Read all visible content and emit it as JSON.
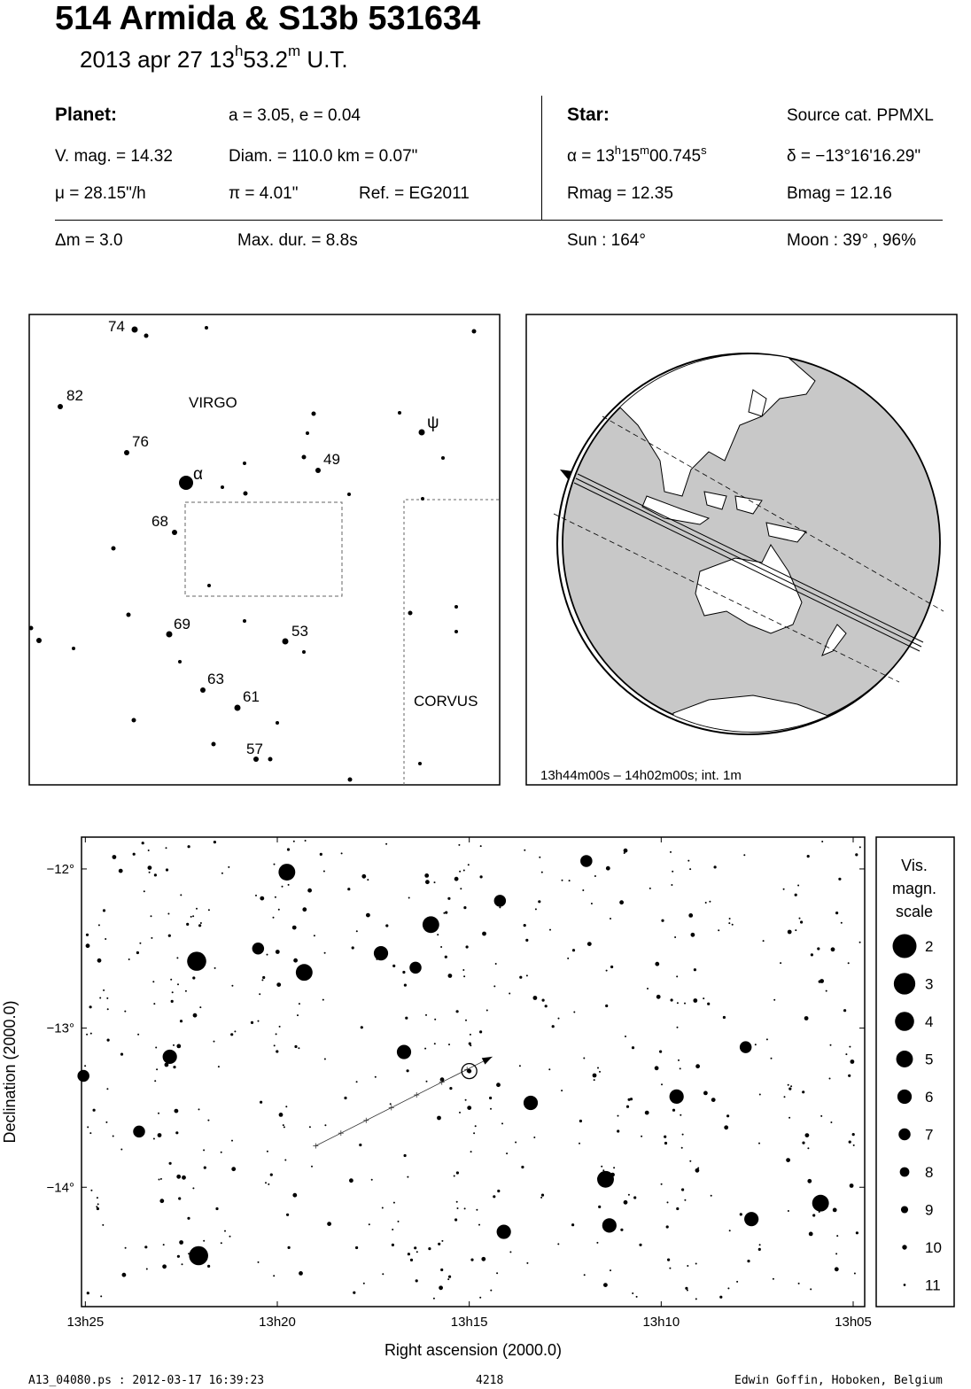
{
  "header": {
    "title": "514 Armida  &  S13b 531634",
    "date": "2013 apr 27  13",
    "time_h": "h",
    "time_min": "53.2",
    "time_m": "m",
    "time_ut": " U.T."
  },
  "planet": {
    "label": "Planet:",
    "orbit": "a = 3.05, e = 0.04",
    "vmag": "V. mag. = 14.32",
    "diam": "Diam. = 110.0 km = 0.07\"",
    "mu": "μ =  28.15\"/h",
    "pi": "π =  4.01\"",
    "ref": "Ref. = EG2011"
  },
  "star": {
    "label": "Star:",
    "source": "Source cat.  PPMXL",
    "alpha_prefix": "α = 13",
    "alpha_h": "h",
    "alpha_min": "15",
    "alpha_m": "m",
    "alpha_sec": "00.745",
    "alpha_s": "s",
    "delta": "δ = −13°16'16.29\"",
    "rmag": "Rmag = 12.35",
    "bmag": "Bmag = 12.16"
  },
  "event": {
    "dm": "Δm = 3.0",
    "maxdur": "Max. dur. = 8.8s",
    "sun": "Sun : 164°",
    "moon": "Moon :  39° , 96%"
  },
  "finder": {
    "constellations": [
      "VIRGO",
      "CORVUS"
    ],
    "labels": [
      {
        "text": "74"
      },
      {
        "text": "82"
      },
      {
        "text": "76"
      },
      {
        "text": "α"
      },
      {
        "text": "68"
      },
      {
        "text": "ψ"
      },
      {
        "text": "49"
      },
      {
        "text": "69"
      },
      {
        "text": "53"
      },
      {
        "text": "63"
      },
      {
        "text": "61"
      },
      {
        "text": "57"
      }
    ]
  },
  "globe": {
    "caption": "13h44m00s – 14h02m00s; int.  1m"
  },
  "chart_data": {
    "type": "scatter",
    "xlabel": "Right ascension (2000.0)",
    "ylabel": "Declination (2000.0)",
    "x_ticks": [
      "13h25",
      "13h20",
      "13h15",
      "13h10",
      "13h05"
    ],
    "y_ticks": [
      "−12°",
      "−13°",
      "−14°"
    ],
    "x_tick_values_min": [
      25,
      20,
      15,
      10,
      5
    ],
    "y_tick_values_deg": [
      -12,
      -13,
      -14
    ],
    "xlim_min": [
      25.1,
      4.7
    ],
    "ylim_deg": [
      -11.8,
      -14.75
    ],
    "target": {
      "ra_min": 15.0,
      "dec_deg": -13.27
    },
    "path": [
      {
        "ra_min": 19.0,
        "dec_deg": -13.74
      },
      {
        "ra_min": 14.4,
        "dec_deg": -13.18
      }
    ],
    "bright_stars": [
      {
        "ra_min": 22.1,
        "dec_deg": -12.58,
        "mag": 4
      },
      {
        "ra_min": 22.05,
        "dec_deg": -14.43,
        "mag": 4
      },
      {
        "ra_min": 19.75,
        "dec_deg": -12.02,
        "mag": 5
      },
      {
        "ra_min": 19.3,
        "dec_deg": -12.65,
        "mag": 5
      },
      {
        "ra_min": 16.0,
        "dec_deg": -12.35,
        "mag": 5
      },
      {
        "ra_min": 11.45,
        "dec_deg": -13.95,
        "mag": 5
      },
      {
        "ra_min": 5.85,
        "dec_deg": -14.1,
        "mag": 5
      },
      {
        "ra_min": 13.4,
        "dec_deg": -13.47,
        "mag": 6
      },
      {
        "ra_min": 22.8,
        "dec_deg": -13.18,
        "mag": 6
      },
      {
        "ra_min": 17.3,
        "dec_deg": -12.53,
        "mag": 6
      },
      {
        "ra_min": 16.7,
        "dec_deg": -13.15,
        "mag": 6
      },
      {
        "ra_min": 11.35,
        "dec_deg": -14.24,
        "mag": 6
      },
      {
        "ra_min": 7.65,
        "dec_deg": -14.2,
        "mag": 6
      },
      {
        "ra_min": 14.1,
        "dec_deg": -14.28,
        "mag": 6
      },
      {
        "ra_min": 9.6,
        "dec_deg": -13.43,
        "mag": 6
      },
      {
        "ra_min": 7.8,
        "dec_deg": -13.12,
        "mag": 7
      },
      {
        "ra_min": 25.05,
        "dec_deg": -13.3,
        "mag": 7
      },
      {
        "ra_min": 23.6,
        "dec_deg": -13.65,
        "mag": 7
      },
      {
        "ra_min": 20.5,
        "dec_deg": -12.5,
        "mag": 7
      },
      {
        "ra_min": 16.4,
        "dec_deg": -12.62,
        "mag": 7
      },
      {
        "ra_min": 11.95,
        "dec_deg": -11.95,
        "mag": 7
      },
      {
        "ra_min": 14.2,
        "dec_deg": -12.2,
        "mag": 7
      }
    ]
  },
  "legend": {
    "title_lines": [
      "Vis.",
      "magn.",
      "scale"
    ],
    "mags": [
      "2",
      "3",
      "4",
      "5",
      "6",
      "7",
      "8",
      "9",
      "10",
      "11"
    ]
  },
  "footer": {
    "left": "A13_04080.ps : 2012-03-17 16:39:23",
    "center": "4218",
    "right": "Edwin Goffin, Hoboken, Belgium"
  }
}
